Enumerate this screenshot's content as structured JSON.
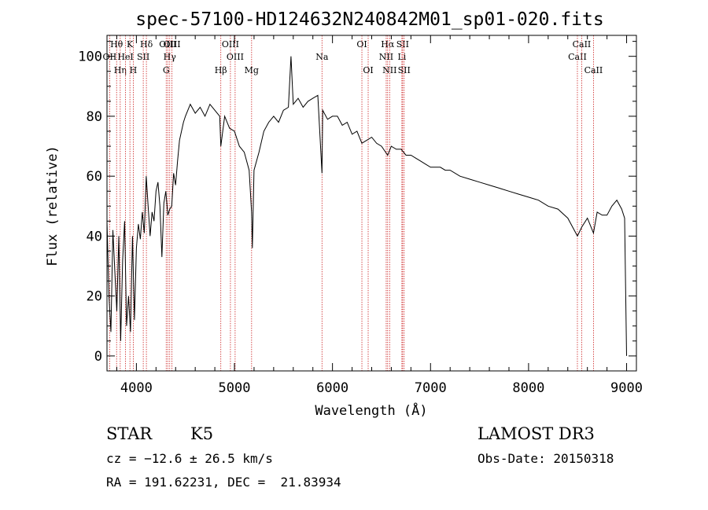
{
  "chart_data": {
    "type": "line",
    "title": "spec-57100-HD124632N240842M01_sp01-020.fits",
    "xlabel": "Wavelength (Å)",
    "ylabel": "Flux (relative)",
    "xlim": [
      3700,
      9100
    ],
    "ylim": [
      -5,
      107
    ],
    "xticks": [
      "4000",
      "5000",
      "6000",
      "7000",
      "8000",
      "9000"
    ],
    "yticks": [
      "0",
      "20",
      "40",
      "60",
      "80",
      "100"
    ],
    "series": [
      {
        "x": [
          3700,
          3720,
          3740,
          3760,
          3780,
          3800,
          3820,
          3840,
          3860,
          3880,
          3900,
          3920,
          3940,
          3960,
          3980,
          4000,
          4020,
          4040,
          4060,
          4080,
          4100,
          4120,
          4140,
          4160,
          4180,
          4200,
          4220,
          4240,
          4260,
          4280,
          4300,
          4320,
          4340,
          4360,
          4380,
          4400,
          4420,
          4440,
          4460,
          4480,
          4500,
          4550,
          4600,
          4650,
          4700,
          4750,
          4800,
          4850,
          4861,
          4900,
          4950,
          5000,
          5050,
          5100,
          5150,
          5175,
          5183,
          5200,
          5250,
          5300,
          5350,
          5400,
          5450,
          5500,
          5550,
          5577,
          5600,
          5650,
          5700,
          5750,
          5800,
          5850,
          5893,
          5900,
          5950,
          6000,
          6050,
          6100,
          6150,
          6200,
          6250,
          6300,
          6350,
          6400,
          6450,
          6500,
          6563,
          6600,
          6650,
          6700,
          6750,
          6800,
          6850,
          6900,
          6950,
          7000,
          7050,
          7100,
          7150,
          7200,
          7300,
          7400,
          7500,
          7600,
          7700,
          7800,
          7900,
          8000,
          8100,
          8200,
          8300,
          8400,
          8498,
          8542,
          8600,
          8662,
          8700,
          8750,
          8800,
          8850,
          8900,
          8950,
          8980,
          9000
        ],
        "y": [
          45,
          20,
          8,
          42,
          28,
          15,
          40,
          5,
          32,
          45,
          10,
          20,
          8,
          40,
          12,
          36,
          44,
          39,
          48,
          41,
          60,
          50,
          40,
          48,
          45,
          55,
          58,
          50,
          33,
          51,
          55,
          47,
          49,
          50,
          61,
          57,
          65,
          72,
          75,
          78,
          80,
          84,
          81,
          83,
          80,
          84,
          82,
          80,
          70,
          80,
          76,
          75,
          70,
          68,
          62,
          48,
          36,
          62,
          68,
          75,
          78,
          80,
          78,
          82,
          83,
          100,
          84,
          86,
          83,
          85,
          86,
          87,
          61,
          82,
          79,
          80,
          80,
          77,
          78,
          74,
          75,
          71,
          72,
          73,
          71,
          70,
          67,
          70,
          69,
          69,
          67,
          67,
          66,
          65,
          64,
          63,
          63,
          63,
          62,
          62,
          60,
          59,
          58,
          57,
          56,
          55,
          54,
          53,
          52,
          50,
          49,
          46,
          40,
          43,
          46,
          41,
          48,
          47,
          47,
          50,
          52,
          49,
          46,
          0
        ]
      }
    ],
    "spectral_lines": [
      {
        "label": "Hθ",
        "wavelength": 3798,
        "row": 1
      },
      {
        "label": "OII",
        "wavelength": 3727,
        "row": 2
      },
      {
        "label": "Hη",
        "wavelength": 3835,
        "row": 3
      },
      {
        "label": "HeI",
        "wavelength": 3889,
        "row": 2
      },
      {
        "label": "K",
        "wavelength": 3934,
        "row": 1
      },
      {
        "label": "H",
        "wavelength": 3968,
        "row": 3
      },
      {
        "label": "SII",
        "wavelength": 4070,
        "row": 2
      },
      {
        "label": "Hδ",
        "wavelength": 4102,
        "row": 1
      },
      {
        "label": "G",
        "wavelength": 4304,
        "row": 3
      },
      {
        "label": "OIII",
        "wavelength": 4320,
        "row": 1
      },
      {
        "label": "Hγ",
        "wavelength": 4340,
        "row": 2
      },
      {
        "label": "OIII",
        "wavelength": 4363,
        "row": 1
      },
      {
        "label": "Hβ",
        "wavelength": 4861,
        "row": 3
      },
      {
        "label": "OIII",
        "wavelength": 4959,
        "row": 1
      },
      {
        "label": "OIII",
        "wavelength": 5007,
        "row": 2
      },
      {
        "label": "Mg",
        "wavelength": 5175,
        "row": 3
      },
      {
        "label": "Na",
        "wavelength": 5893,
        "row": 2
      },
      {
        "label": "OI",
        "wavelength": 6300,
        "row": 1
      },
      {
        "label": "OI",
        "wavelength": 6364,
        "row": 3
      },
      {
        "label": "Hα",
        "wavelength": 6563,
        "row": 1
      },
      {
        "label": "NII",
        "wavelength": 6548,
        "row": 2
      },
      {
        "label": "NII",
        "wavelength": 6583,
        "row": 3
      },
      {
        "label": "Li",
        "wavelength": 6708,
        "row": 2
      },
      {
        "label": "SII",
        "wavelength": 6716,
        "row": 1
      },
      {
        "label": "SII",
        "wavelength": 6731,
        "row": 3
      },
      {
        "label": "CaII",
        "wavelength": 8498,
        "row": 2
      },
      {
        "label": "CaII",
        "wavelength": 8542,
        "row": 1
      },
      {
        "label": "CaII",
        "wavelength": 8662,
        "row": 3
      }
    ]
  },
  "info": {
    "class": "STAR",
    "subclass": "K5",
    "survey": "LAMOST DR3",
    "redshift": "cz = −12.6 ± 26.5 km/s",
    "obs_date": "Obs-Date: 20150318",
    "coords": "RA = 191.62231, DEC =  21.83934"
  }
}
